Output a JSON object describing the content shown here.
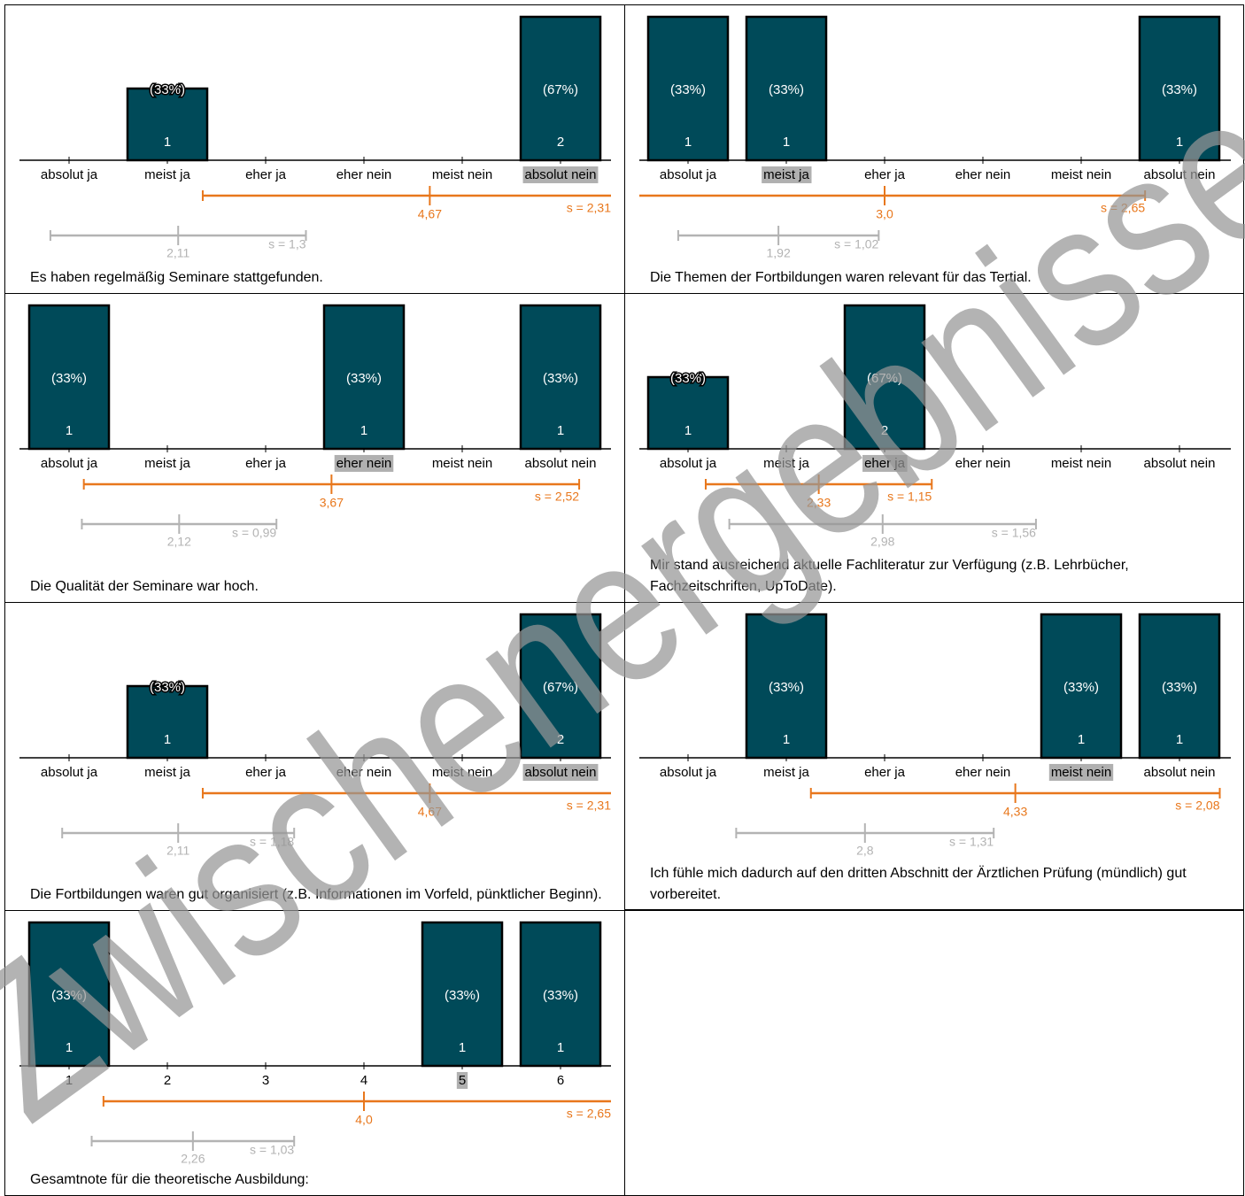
{
  "watermark": "Zwischenergebnisse",
  "chart_data": [
    {
      "type": "bar",
      "categories": [
        "absolut ja",
        "meist ja",
        "eher ja",
        "eher nein",
        "meist nein",
        "absolut nein"
      ],
      "values": [
        0,
        1,
        0,
        0,
        0,
        2
      ],
      "percent_labels": [
        null,
        "(33%)",
        null,
        null,
        null,
        "(67%)"
      ],
      "ylim": [
        0,
        2
      ],
      "highlight_index": 5,
      "color": "#004a59",
      "mean": 4.67,
      "mean_label": "4,67",
      "sd": 2.31,
      "sd_label": "s = 2,31",
      "comparison_mean": 2.11,
      "comparison_mean_label": "2,11",
      "comparison_sd": 1.3,
      "comparison_sd_label": "s = 1,3",
      "caption": "Es haben regelmäßig Seminare stattgefunden."
    },
    {
      "type": "bar",
      "categories": [
        "absolut ja",
        "meist ja",
        "eher ja",
        "eher nein",
        "meist nein",
        "absolut nein"
      ],
      "values": [
        1,
        1,
        0,
        0,
        0,
        1
      ],
      "percent_labels": [
        "(33%)",
        "(33%)",
        null,
        null,
        null,
        "(33%)"
      ],
      "ylim": [
        0,
        1
      ],
      "highlight_index": 1,
      "color": "#004a59",
      "mean": 3.0,
      "mean_label": "3,0",
      "sd": 2.65,
      "sd_label": "s = 2,65",
      "comparison_mean": 1.92,
      "comparison_mean_label": "1,92",
      "comparison_sd": 1.02,
      "comparison_sd_label": "s = 1,02",
      "caption": "Die Themen der Fortbildungen waren relevant für das Tertial."
    },
    {
      "type": "bar",
      "categories": [
        "absolut ja",
        "meist ja",
        "eher ja",
        "eher nein",
        "meist nein",
        "absolut nein"
      ],
      "values": [
        1,
        0,
        0,
        1,
        0,
        1
      ],
      "percent_labels": [
        "(33%)",
        null,
        null,
        "(33%)",
        null,
        "(33%)"
      ],
      "ylim": [
        0,
        1
      ],
      "highlight_index": 3,
      "color": "#004a59",
      "mean": 3.67,
      "mean_label": "3,67",
      "sd": 2.52,
      "sd_label": "s = 2,52",
      "comparison_mean": 2.12,
      "comparison_mean_label": "2,12",
      "comparison_sd": 0.99,
      "comparison_sd_label": "s = 0,99",
      "caption": "Die Qualität der Seminare war hoch."
    },
    {
      "type": "bar",
      "categories": [
        "absolut ja",
        "meist ja",
        "eher ja",
        "eher nein",
        "meist nein",
        "absolut nein"
      ],
      "values": [
        1,
        0,
        2,
        0,
        0,
        0
      ],
      "percent_labels": [
        "(33%)",
        null,
        "(67%)",
        null,
        null,
        null
      ],
      "ylim": [
        0,
        2
      ],
      "highlight_index": 2,
      "color": "#004a59",
      "mean": 2.33,
      "mean_label": "2,33",
      "sd": 1.15,
      "sd_label": "s = 1,15",
      "comparison_mean": 2.98,
      "comparison_mean_label": "2,98",
      "comparison_sd": 1.56,
      "comparison_sd_label": "s = 1,56",
      "caption": "Mir stand ausreichend aktuelle Fachliteratur zur Verfügung (z.B. Lehrbücher, Fachzeitschriften, UpToDate)."
    },
    {
      "type": "bar",
      "categories": [
        "absolut ja",
        "meist ja",
        "eher ja",
        "eher nein",
        "meist nein",
        "absolut nein"
      ],
      "values": [
        0,
        1,
        0,
        0,
        0,
        2
      ],
      "percent_labels": [
        null,
        "(33%)",
        null,
        null,
        null,
        "(67%)"
      ],
      "ylim": [
        0,
        2
      ],
      "highlight_index": 5,
      "color": "#004a59",
      "mean": 4.67,
      "mean_label": "4,67",
      "sd": 2.31,
      "sd_label": "s = 2,31",
      "comparison_mean": 2.11,
      "comparison_mean_label": "2,11",
      "comparison_sd": 1.18,
      "comparison_sd_label": "s = 1,18",
      "caption": "Die Fortbildungen waren gut organisiert (z.B. Informationen im Vorfeld, pünktlicher Beginn)."
    },
    {
      "type": "bar",
      "categories": [
        "absolut ja",
        "meist ja",
        "eher ja",
        "eher nein",
        "meist nein",
        "absolut nein"
      ],
      "values": [
        0,
        1,
        0,
        0,
        1,
        1
      ],
      "percent_labels": [
        null,
        "(33%)",
        null,
        null,
        "(33%)",
        "(33%)"
      ],
      "ylim": [
        0,
        1
      ],
      "highlight_index": 4,
      "color": "#004a59",
      "mean": 4.33,
      "mean_label": "4,33",
      "sd": 2.08,
      "sd_label": "s = 2,08",
      "comparison_mean": 2.8,
      "comparison_mean_label": "2,8",
      "comparison_sd": 1.31,
      "comparison_sd_label": "s = 1,31",
      "caption": "Ich fühle mich dadurch auf den dritten Abschnitt der Ärztlichen Prüfung (mündlich) gut vorbereitet."
    },
    {
      "type": "bar",
      "categories": [
        "1",
        "2",
        "3",
        "4",
        "5",
        "6"
      ],
      "values": [
        1,
        0,
        0,
        0,
        1,
        1
      ],
      "percent_labels": [
        "(33%)",
        null,
        null,
        null,
        "(33%)",
        "(33%)"
      ],
      "ylim": [
        0,
        1
      ],
      "highlight_index": 4,
      "color": "#004a59",
      "mean": 4.0,
      "mean_label": "4,0",
      "sd": 2.65,
      "sd_label": "s = 2,65",
      "comparison_mean": 2.26,
      "comparison_mean_label": "2,26",
      "comparison_sd": 1.03,
      "comparison_sd_label": "s = 1,03",
      "caption": "Gesamtnote für die theoretische Ausbildung:"
    }
  ]
}
